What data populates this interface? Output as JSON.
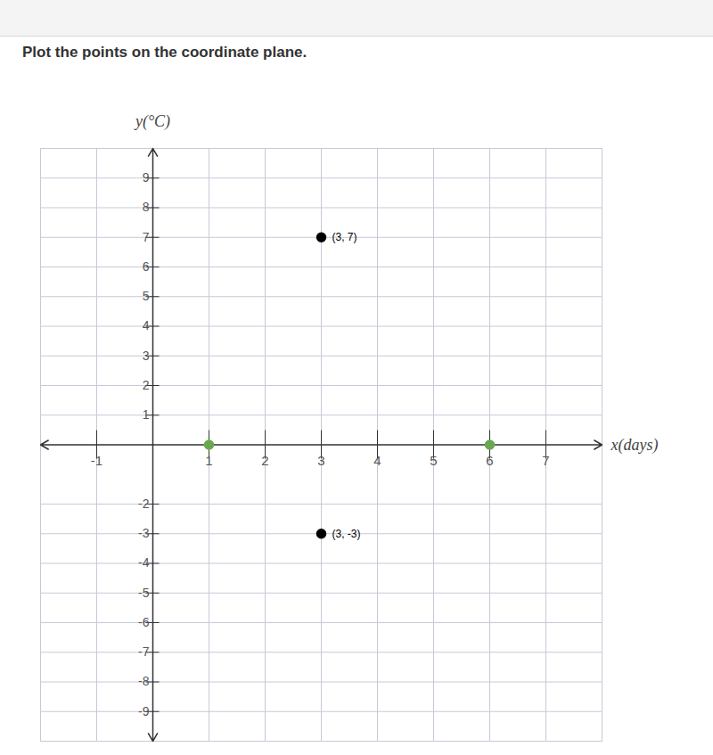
{
  "chart_data": {
    "type": "scatter",
    "title": "Plot the points on the coordinate plane.",
    "x_label": "x(days)",
    "y_label": "y(°C)",
    "x": [
      3,
      3,
      1,
      6
    ],
    "values": [
      7,
      -3,
      0,
      0
    ],
    "colors": [
      "#000000",
      "#000000",
      "#6aa84f",
      "#6aa84f"
    ],
    "marker": "circle",
    "annotations": [
      {
        "x": 3,
        "y": 7,
        "text": "(3, 7)"
      },
      {
        "x": 3,
        "y": -3,
        "text": "(3, -3)"
      }
    ],
    "xlim": [
      -2,
      8
    ],
    "xticks": [
      -1,
      1,
      2,
      3,
      4,
      5,
      6,
      7
    ],
    "ylim": [
      -10,
      10
    ],
    "yticks": [
      -9,
      -8,
      -7,
      -6,
      -5,
      -4,
      -3,
      -2,
      1,
      2,
      3,
      4,
      5,
      6,
      7,
      8,
      9
    ],
    "grid": true
  }
}
